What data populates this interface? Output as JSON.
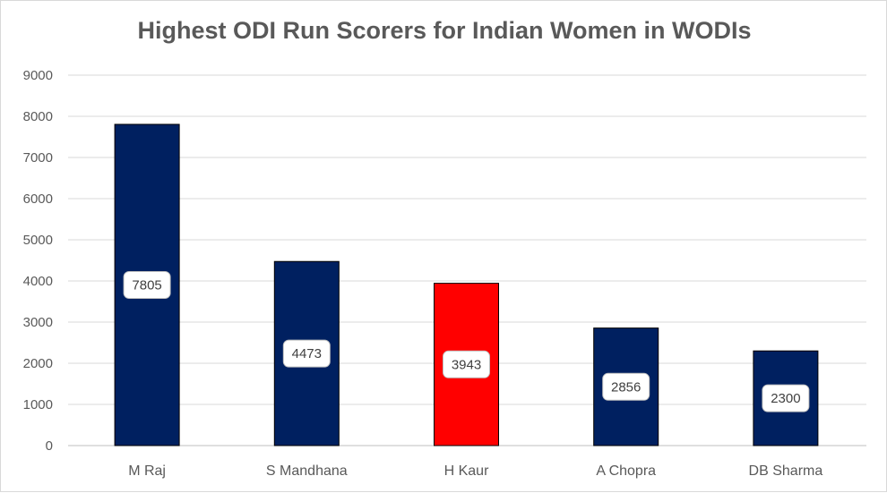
{
  "chart_data": {
    "type": "bar",
    "title": "Highest ODI Run Scorers for Indian Women in WODIs",
    "categories": [
      "M Raj",
      "S Mandhana",
      "H Kaur",
      "A Chopra",
      "DB Sharma"
    ],
    "values": [
      7805,
      4473,
      3943,
      2856,
      2300
    ],
    "bar_colors": [
      "#002060",
      "#002060",
      "#ff0000",
      "#002060",
      "#002060"
    ],
    "ylim": [
      0,
      9000
    ],
    "yticks": [
      0,
      1000,
      2000,
      3000,
      4000,
      5000,
      6000,
      7000,
      8000,
      9000
    ],
    "xlabel": "",
    "ylabel": "",
    "grid": true,
    "legend": "none",
    "data_labels": true
  }
}
